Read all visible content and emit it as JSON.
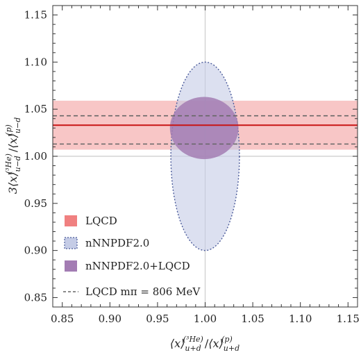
{
  "chart_data": {
    "type": "scatter",
    "xlabel": "⟨x⟩u+d(³He) / ⟨x⟩u+d(p)",
    "ylabel": "3⟨x⟩u−d(³He) / ⟨x⟩u−d(p)",
    "xlim": [
      0.84,
      1.16
    ],
    "ylim": [
      0.84,
      1.16
    ],
    "xticks": [
      "0.85",
      "0.90",
      "0.95",
      "1.00",
      "1.05",
      "1.10",
      "1.15"
    ],
    "yticks": [
      "0.85",
      "0.90",
      "0.95",
      "1.00",
      "1.05",
      "1.10",
      "1.15"
    ],
    "grid": false,
    "reference_lines": {
      "x": 1.0,
      "y": 1.0
    },
    "legend": {
      "placement": "bottom-left",
      "entries": [
        {
          "label": "LQCD",
          "style": "filled-band",
          "color": "#f08080"
        },
        {
          "label": "nNNPDF2.0",
          "style": "dotted-ellipse",
          "color": "#c5cce6"
        },
        {
          "label": "nNNPDF2.0+LQCD",
          "style": "filled-ellipse",
          "color": "#a37cb3"
        },
        {
          "label": "LQCD mπ = 806 MeV",
          "style": "dashed-line",
          "color": "#666666"
        }
      ]
    },
    "series": [
      {
        "name": "LQCD",
        "kind": "horizontal-band",
        "central": 1.033,
        "lower": 1.007,
        "upper": 1.059,
        "line_color": "#c81414",
        "fill_color": "#f4a7a7"
      },
      {
        "name": "nNNPDF2.0",
        "kind": "ellipse",
        "center": [
          1.0,
          1.0
        ],
        "x_halfwidth": 0.036,
        "y_halfwidth": 0.1,
        "fill_color": "#c5cce6",
        "edge_color": "#4a5a9a"
      },
      {
        "name": "nNNPDF2.0+LQCD",
        "kind": "ellipse",
        "center": [
          0.999,
          1.03
        ],
        "x_halfwidth": 0.036,
        "y_halfwidth": 0.033,
        "fill_color": "#a37cb3"
      },
      {
        "name": "LQCD mπ = 806 MeV",
        "kind": "horizontal-dashed-lines",
        "values": [
          1.043,
          1.013
        ],
        "color": "#666666"
      }
    ]
  }
}
